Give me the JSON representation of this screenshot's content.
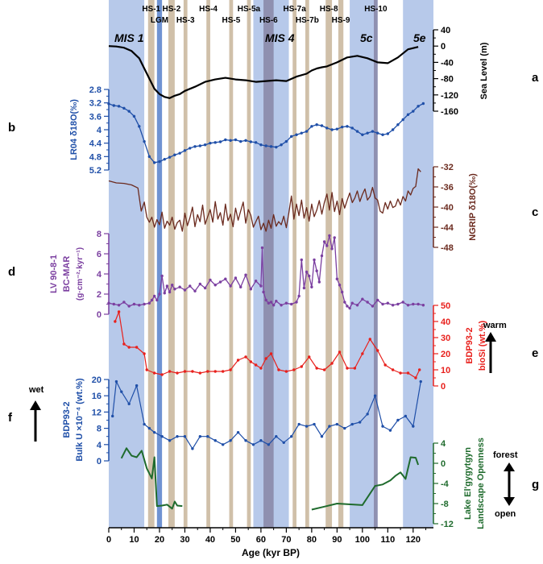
{
  "chart_data": {
    "type": "line",
    "xlabel": "Age (kyr BP)",
    "x_ticks": [
      0,
      10,
      20,
      30,
      40,
      50,
      60,
      70,
      80,
      90,
      100,
      110,
      120
    ],
    "xlim": [
      0,
      128
    ],
    "colors": {
      "sea_level": "#000000",
      "lr04": "#1f4fa8",
      "ngrip": "#6b2a1e",
      "bcmar": "#7b3fa0",
      "biosi": "#e8201c",
      "bulk_u": "#1f4fa8",
      "openness": "#1f6b2d",
      "cold_stage_band": "#b7c9ea",
      "heinrich_band": "#cbb9a0",
      "overlap_band": "#8b8aaa",
      "lgm_band": "#6f93d2"
    },
    "stage_bands": [
      {
        "label": "MIS 1",
        "x_from": 0,
        "x_to": 14
      },
      {
        "label": "MIS 4",
        "x_from": 57,
        "x_to": 71
      },
      {
        "label": "5c",
        "x_from": 95,
        "x_to": 106
      },
      {
        "label": "5e",
        "x_from": 116,
        "x_to": 128
      }
    ],
    "lgm_band": {
      "label": "LGM",
      "x_from": 19,
      "x_to": 21
    },
    "heinrich_events": [
      {
        "label": "HS-1",
        "x_from": 15.5,
        "x_to": 18,
        "row": 0
      },
      {
        "label": "HS-2",
        "x_from": 23.5,
        "x_to": 26,
        "row": 0
      },
      {
        "label": "HS-3",
        "x_from": 29.5,
        "x_to": 31,
        "row": 1
      },
      {
        "label": "HS-4",
        "x_from": 38.5,
        "x_to": 40,
        "row": 0
      },
      {
        "label": "HS-5",
        "x_from": 47.5,
        "x_to": 49,
        "row": 1
      },
      {
        "label": "HS-5a",
        "x_from": 54.5,
        "x_to": 56,
        "row": 0
      },
      {
        "label": "HS-6",
        "x_from": 61,
        "x_to": 65,
        "row": 1
      },
      {
        "label": "HS-7a",
        "x_from": 72.5,
        "x_to": 74,
        "row": 0
      },
      {
        "label": "HS-7b",
        "x_from": 77.5,
        "x_to": 79,
        "row": 1
      },
      {
        "label": "HS-8",
        "x_from": 85.5,
        "x_to": 88,
        "row": 0
      },
      {
        "label": "HS-9",
        "x_from": 90.5,
        "x_to": 92.5,
        "row": 1
      },
      {
        "label": "HS-10",
        "x_from": 104.5,
        "x_to": 106,
        "row": 0
      }
    ],
    "panel_letters": {
      "a": "a",
      "b": "b",
      "c": "c",
      "d": "d",
      "e": "e",
      "f": "f",
      "g": "g"
    },
    "annotations": {
      "warm": "warm",
      "wet": "wet",
      "forest": "forest",
      "open": "open"
    },
    "panels": [
      {
        "id": "sea_level",
        "label": "Sea Level (m)",
        "side": "right",
        "ticks": [
          40,
          0,
          -40,
          -80,
          -120,
          -160
        ],
        "tick_labels": [
          "40",
          "0",
          "-40",
          "-80",
          "-120",
          "-160"
        ],
        "ylim": [
          -160,
          40
        ],
        "x": [
          0,
          3,
          6,
          9,
          12,
          14,
          16,
          18,
          20,
          22,
          24,
          26,
          28,
          30,
          34,
          38,
          42,
          46,
          50,
          54,
          58,
          62,
          66,
          70,
          74,
          78,
          80,
          82,
          84,
          86,
          88,
          90,
          94,
          98,
          102,
          106,
          110,
          114,
          118,
          122
        ],
        "y": [
          0,
          -1,
          -4,
          -12,
          -30,
          -55,
          -80,
          -105,
          -118,
          -125,
          -128,
          -122,
          -118,
          -110,
          -100,
          -88,
          -82,
          -78,
          -82,
          -84,
          -88,
          -86,
          -84,
          -86,
          -75,
          -68,
          -60,
          -55,
          -52,
          -50,
          -45,
          -40,
          -28,
          -24,
          -30,
          -40,
          -42,
          -28,
          -8,
          -2
        ],
        "markers": false
      },
      {
        "id": "lr04",
        "label": "LR04 δ18O(‰)",
        "side": "left",
        "ticks": [
          2.8,
          3.2,
          3.6,
          4.0,
          4.4,
          4.8,
          5.2
        ],
        "tick_labels": [
          "2.8",
          "3.2",
          "3.6",
          "4",
          "4.4",
          "4.8",
          "5.2"
        ],
        "ylim": [
          2.8,
          5.2
        ],
        "inverted": true,
        "x": [
          0,
          2,
          4,
          6,
          8,
          10,
          12,
          14,
          16,
          18,
          20,
          22,
          24,
          26,
          28,
          30,
          32,
          34,
          36,
          38,
          40,
          42,
          44,
          46,
          48,
          50,
          52,
          54,
          56,
          58,
          60,
          62,
          64,
          66,
          68,
          70,
          72,
          74,
          76,
          78,
          80,
          82,
          84,
          86,
          88,
          90,
          92,
          94,
          96,
          98,
          100,
          102,
          104,
          106,
          108,
          110,
          112,
          114,
          116,
          118,
          120,
          122,
          124
        ],
        "y": [
          3.23,
          3.28,
          3.3,
          3.36,
          3.45,
          3.6,
          3.9,
          4.35,
          4.8,
          4.98,
          4.95,
          4.88,
          4.82,
          4.75,
          4.7,
          4.62,
          4.55,
          4.5,
          4.48,
          4.45,
          4.4,
          4.38,
          4.36,
          4.3,
          4.32,
          4.3,
          4.35,
          4.32,
          4.36,
          4.38,
          4.45,
          4.48,
          4.5,
          4.52,
          4.45,
          4.35,
          4.2,
          4.15,
          4.1,
          4.05,
          3.9,
          3.85,
          3.88,
          3.95,
          4.0,
          3.98,
          3.92,
          3.9,
          3.95,
          4.05,
          4.15,
          4.1,
          4.05,
          4.1,
          4.15,
          4.12,
          4.0,
          3.85,
          3.7,
          3.55,
          3.45,
          3.3,
          3.22
        ],
        "markers": true
      },
      {
        "id": "ngrip",
        "label": "NGRIP δ18O(‰)",
        "side": "right",
        "ticks": [
          -32,
          -36,
          -40,
          -44,
          -48
        ],
        "tick_labels": [
          "-32",
          "-36",
          "-40",
          "-44",
          "-48"
        ],
        "ylim": [
          -48,
          -32
        ],
        "x": [
          0,
          3,
          6,
          9,
          11.5,
          12.8,
          14,
          15,
          16,
          17,
          18,
          19,
          20,
          21,
          22,
          23,
          24,
          25,
          26,
          27,
          28,
          29,
          30,
          31,
          32,
          33,
          34,
          35,
          36,
          37,
          38,
          39,
          40,
          41,
          42,
          43,
          44,
          45,
          46,
          47,
          48,
          49,
          50,
          51,
          52,
          53,
          54,
          55,
          56,
          57,
          58,
          59,
          60,
          61,
          62,
          63,
          64,
          65,
          66,
          67,
          68,
          69,
          70,
          71,
          72,
          73,
          74,
          75,
          76,
          77,
          78,
          79,
          80,
          81,
          82,
          83,
          84,
          85,
          86,
          87,
          88,
          89,
          90,
          91,
          92,
          93,
          94,
          95,
          96,
          97,
          98,
          99,
          100,
          101,
          102,
          103,
          104,
          105,
          106,
          107,
          108,
          109,
          110,
          111,
          112,
          113,
          114,
          115,
          116,
          117,
          118,
          119,
          120,
          121,
          122,
          123
        ],
        "y": [
          -34.8,
          -35.2,
          -35.3,
          -35.6,
          -36.2,
          -40.8,
          -39.0,
          -42.0,
          -43.0,
          -42.0,
          -44.0,
          -42.5,
          -43.5,
          -41.0,
          -44.2,
          -42.8,
          -43.6,
          -42.0,
          -44.4,
          -43.1,
          -42.6,
          -44.8,
          -41.2,
          -43.7,
          -42.1,
          -40.0,
          -43.9,
          -41.5,
          -42.9,
          -39.6,
          -43.4,
          -41.9,
          -40.5,
          -43.0,
          -38.9,
          -42.4,
          -41.1,
          -43.6,
          -39.4,
          -42.7,
          -41.4,
          -43.9,
          -40.2,
          -42.6,
          -40.8,
          -39.0,
          -43.2,
          -40.5,
          -41.6,
          -44.0,
          -42.9,
          -41.8,
          -44.5,
          -43.2,
          -44.8,
          -42.6,
          -44.2,
          -41.5,
          -43.8,
          -42.9,
          -43.5,
          -41.8,
          -44.1,
          -41.2,
          -37.8,
          -42.4,
          -39.4,
          -41.7,
          -38.6,
          -42.2,
          -40.1,
          -42.8,
          -39.4,
          -41.9,
          -40.6,
          -38.7,
          -41.4,
          -39.1,
          -37.4,
          -40.6,
          -37.1,
          -40.9,
          -38.8,
          -41.5,
          -38.3,
          -40.2,
          -38.6,
          -37.2,
          -39.1,
          -38.2,
          -36.8,
          -38.9,
          -37.5,
          -36.4,
          -38.6,
          -37.9,
          -36.1,
          -38.2,
          -38.6,
          -40.8,
          -41.2,
          -39.1,
          -40.4,
          -38.8,
          -40.1,
          -39.8,
          -38.4,
          -39.6,
          -37.9,
          -38.8,
          -36.8,
          -37.6,
          -36.3,
          -35.9,
          -32.4,
          -33.0
        ],
        "markers": false
      },
      {
        "id": "bcmar",
        "label_lines": [
          "LV 90-8-1",
          "BC-MAR",
          "(g·cm⁻²·kyr⁻¹)"
        ],
        "side": "left",
        "ticks": [
          0,
          2,
          4,
          6,
          8
        ],
        "tick_labels": [
          "0",
          "2",
          "4",
          "6",
          "8"
        ],
        "ylim": [
          0,
          8
        ],
        "x": [
          0,
          2,
          4,
          6,
          8,
          10,
          12,
          14,
          16,
          17,
          18,
          19,
          20,
          21,
          22,
          23,
          24,
          25,
          26,
          28,
          30,
          32,
          34,
          36,
          38,
          40,
          42,
          44,
          46,
          48,
          50,
          52,
          54,
          56,
          58,
          60,
          60.5,
          61,
          62,
          63,
          64,
          65,
          66,
          68,
          70,
          72,
          74,
          75,
          76,
          77,
          78,
          79,
          80,
          81,
          82,
          83,
          84,
          85,
          86,
          87,
          88,
          89,
          90,
          91,
          92,
          93,
          94,
          95,
          96,
          98,
          100,
          102,
          104,
          106,
          108,
          110,
          112,
          114,
          116,
          118,
          120,
          122,
          124
        ],
        "y": [
          1.1,
          1.0,
          0.9,
          1.2,
          0.8,
          1.0,
          0.9,
          1.0,
          1.1,
          1.4,
          1.8,
          1.4,
          2.0,
          3.8,
          2.1,
          2.8,
          2.2,
          2.9,
          2.5,
          2.7,
          2.4,
          2.8,
          2.3,
          3.0,
          2.6,
          3.4,
          2.9,
          3.2,
          3.5,
          2.8,
          3.6,
          2.7,
          3.9,
          2.5,
          3.3,
          2.8,
          6.6,
          2.2,
          1.4,
          1.1,
          1.2,
          0.9,
          1.3,
          0.9,
          1.1,
          1.0,
          1.2,
          1.8,
          5.4,
          2.6,
          4.2,
          3.8,
          2.7,
          5.4,
          4.3,
          3.2,
          5.8,
          7.2,
          6.8,
          7.8,
          6.5,
          7.6,
          3.5,
          2.9,
          2.2,
          1.2,
          0.8,
          0.6,
          1.1,
          0.9,
          1.5,
          1.2,
          0.8,
          1.4,
          1.0,
          1.1,
          0.9,
          1.0,
          1.2,
          0.9,
          1.0,
          1.0,
          0.9
        ],
        "markers": true
      },
      {
        "id": "biosi",
        "label_lines": [
          "BDP93-2",
          "bioSi (wt.%)"
        ],
        "side": "right",
        "ticks": [
          0,
          10,
          20,
          30,
          40,
          50
        ],
        "tick_labels": [
          "0",
          "10",
          "20",
          "30",
          "40",
          "50"
        ],
        "ylim": [
          0,
          50
        ],
        "x": [
          2.5,
          4,
          6,
          8,
          11,
          14,
          15,
          18,
          21,
          24,
          27,
          30,
          33,
          36,
          39,
          42,
          45,
          48,
          51,
          54,
          56,
          58,
          60,
          62,
          64,
          67,
          70,
          73,
          76,
          79,
          82,
          85,
          88,
          91,
          94,
          97,
          100,
          103,
          106,
          109,
          112,
          115,
          118,
          121,
          122.5
        ],
        "y": [
          40,
          46,
          26,
          24,
          24,
          20,
          10,
          8,
          7,
          9,
          8,
          9,
          9,
          8,
          9,
          9,
          9,
          10,
          16,
          18,
          15,
          13,
          11,
          17,
          20,
          10,
          9,
          10,
          12,
          18,
          11,
          10,
          14,
          21,
          11,
          11,
          20,
          29,
          22,
          13,
          10,
          8,
          8,
          5,
          10
        ],
        "markers": true
      },
      {
        "id": "bulk_u",
        "label_lines": [
          "BDP93-2",
          "Bulk U ×10⁻⁴ (wt.%)"
        ],
        "side": "left",
        "ticks": [
          0,
          4,
          8,
          12,
          16,
          20
        ],
        "tick_labels": [
          "0",
          "4",
          "8",
          "12",
          "16",
          "20"
        ],
        "ylim": [
          0,
          20
        ],
        "x": [
          1.5,
          3,
          5,
          8,
          11,
          14,
          16,
          18,
          21,
          24,
          27,
          30,
          33,
          36,
          39,
          42,
          45,
          48,
          51,
          54,
          57,
          60,
          63,
          66,
          69,
          72,
          75,
          78,
          81,
          84,
          87,
          90,
          93,
          96,
          99,
          102,
          105,
          108,
          111,
          114,
          117,
          120,
          123
        ],
        "y": [
          11,
          19.5,
          17,
          14,
          18.5,
          9,
          8,
          7,
          6,
          5,
          6,
          6,
          3,
          6,
          6,
          5,
          4,
          5,
          7,
          5,
          4,
          5,
          4,
          6,
          4.5,
          6,
          9,
          8.5,
          9,
          6,
          8.5,
          9,
          8,
          9,
          9.5,
          11.5,
          16,
          8.5,
          7.5,
          10,
          11,
          8.5,
          19.5
        ],
        "markers": true
      },
      {
        "id": "openness",
        "label_lines": [
          "Lake El'gygytgyn",
          "Landscape Openness"
        ],
        "side": "right",
        "ticks": [
          4,
          0,
          -4,
          -8,
          -12
        ],
        "tick_labels": [
          "4",
          "0",
          "-4",
          "-8",
          "-12"
        ],
        "ylim": [
          -12,
          4
        ],
        "segments": [
          {
            "x": [
              5,
              7,
              9,
              11,
              13,
              15,
              17,
              18,
              19,
              21,
              23,
              25,
              26,
              27,
              29
            ],
            "y": [
              1,
              3,
              1.5,
              1.2,
              2.5,
              -1,
              -3,
              1.2,
              -8.5,
              -8.4,
              -8.2,
              -9,
              -7.6,
              -8.4,
              -8.5
            ]
          },
          {
            "x": [
              80,
              85,
              90,
              100,
              105,
              108,
              111,
              113,
              115,
              117,
              119,
              121,
              122
            ],
            "y": [
              -9.2,
              -8.6,
              -8,
              -8.3,
              -4.5,
              -4.2,
              -3.4,
              -2.5,
              -1.8,
              -3.1,
              1.2,
              1.1,
              -0.3
            ]
          }
        ],
        "markers": false
      }
    ]
  }
}
